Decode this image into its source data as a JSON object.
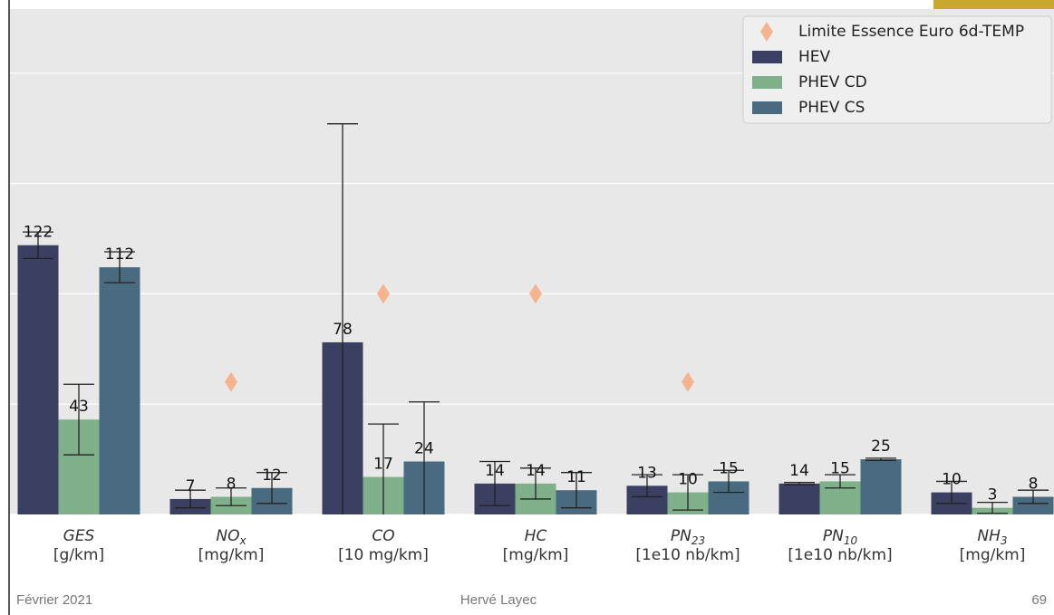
{
  "chart_data": {
    "type": "bar",
    "categories": [
      {
        "label": "GES",
        "unit": "[g/km]"
      },
      {
        "label": "NO",
        "sub": "x",
        "unit": "[mg/km]"
      },
      {
        "label": "CO",
        "unit": "[10 mg/km]"
      },
      {
        "label": "HC",
        "unit": "[mg/km]"
      },
      {
        "label": "PN",
        "sub": "23",
        "unit": "[1e10 nb/km]"
      },
      {
        "label": "PN",
        "sub": "10",
        "unit": "[1e10 nb/km]"
      },
      {
        "label": "NH",
        "sub": "3",
        "unit": "[mg/km]"
      }
    ],
    "series": [
      {
        "name": "Limite Essence Euro 6d-TEMP",
        "marker": "diamond",
        "color": "#f5b48f",
        "values": [
          null,
          60,
          100,
          100,
          60,
          null,
          null
        ]
      },
      {
        "name": "HEV",
        "marker": "bar",
        "color": "#3b3f61",
        "values": [
          122,
          7,
          78,
          14,
          13,
          14,
          10
        ],
        "errors": [
          6,
          4,
          99,
          10,
          5,
          0.5,
          5
        ]
      },
      {
        "name": "PHEV CD",
        "marker": "bar",
        "color": "#7fb08a",
        "values": [
          43,
          8,
          17,
          14,
          10,
          15,
          3
        ],
        "errors": [
          16,
          4,
          24,
          7,
          8,
          3,
          2.5
        ]
      },
      {
        "name": "PHEV CS",
        "marker": "bar",
        "color": "#4a6a80",
        "values": [
          112,
          12,
          24,
          11,
          15,
          25,
          8
        ],
        "errors": [
          7,
          7,
          27,
          8,
          5,
          0.5,
          3
        ]
      }
    ],
    "ylim": [
      0,
      229
    ],
    "yticks": [
      0,
      50,
      100,
      150,
      200
    ],
    "grid": true,
    "legend": "upper right"
  },
  "footer": {
    "left": "Février 2021",
    "center": "Hervé Layec",
    "right": "69"
  }
}
